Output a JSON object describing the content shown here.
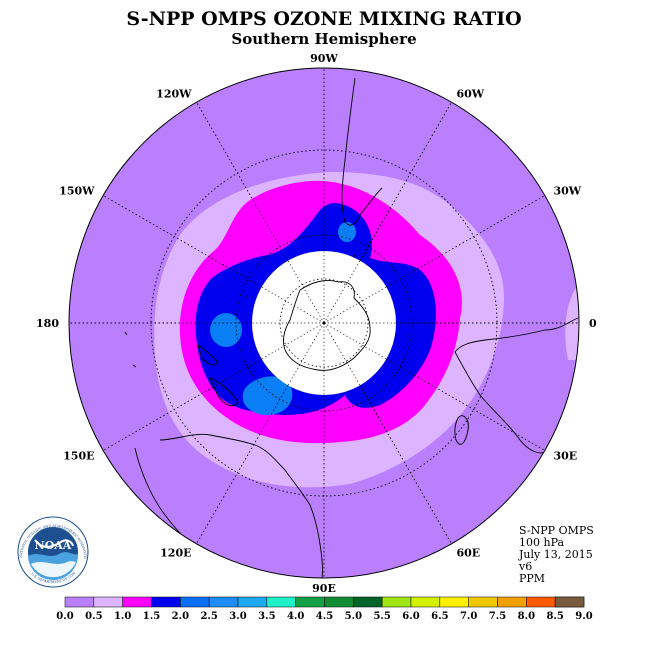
{
  "header": {
    "title": "S-NPP OMPS OZONE MIXING RATIO",
    "subtitle": "Southern Hemisphere"
  },
  "map": {
    "projection": "south-polar-stereographic",
    "longitude_labels": [
      {
        "text": "0",
        "lon": 0
      },
      {
        "text": "30E",
        "lon": 30
      },
      {
        "text": "60E",
        "lon": 60
      },
      {
        "text": "90E",
        "lon": 90
      },
      {
        "text": "120E",
        "lon": 120
      },
      {
        "text": "150E",
        "lon": 150
      },
      {
        "text": "180",
        "lon": 180
      },
      {
        "text": "150W",
        "lon": -150
      },
      {
        "text": "120W",
        "lon": -120
      },
      {
        "text": "90W",
        "lon": -90
      },
      {
        "text": "60W",
        "lon": -60
      },
      {
        "text": "30W",
        "lon": -30
      }
    ],
    "latitude_circles": [
      -30,
      -60
    ],
    "colors": {
      "background_field": "#b97ffc",
      "light_band": "#dcb4ff",
      "magenta_band": "#ff00ff",
      "blue_band": "#0000ee",
      "lightblue_band": "#0a7ff5",
      "no_data_center": "#ffffff"
    }
  },
  "info": {
    "satellite": "S-NPP OMPS",
    "level": "100 hPa",
    "date": "July 13, 2015",
    "version": "v6",
    "units": "PPM"
  },
  "colorbar": {
    "labels": [
      "0.0",
      "0.5",
      "1.0",
      "1.5",
      "2.0",
      "2.5",
      "3.0",
      "3.5",
      "4.0",
      "4.5",
      "5.0",
      "5.5",
      "6.0",
      "6.5",
      "7.0",
      "7.5",
      "8.0",
      "8.5",
      "9.0"
    ],
    "colors": [
      "#b97ffc",
      "#dcb4ff",
      "#ff00ff",
      "#0000ee",
      "#0a6ff5",
      "#1e8cf5",
      "#1eaaf0",
      "#1ef0c8",
      "#14a046",
      "#0f8c32",
      "#006428",
      "#a0e614",
      "#d2f000",
      "#fff000",
      "#f0c800",
      "#f0a000",
      "#ff5a00",
      "#e60000",
      "#785a3c"
    ]
  },
  "logo": {
    "text": "NOAA",
    "ring_text": "NATIONAL OCEANIC AND ATMOSPHERIC ADMINISTRATION",
    "ring_text_bottom": "U.S. DEPARTMENT OF COMMERCE"
  }
}
